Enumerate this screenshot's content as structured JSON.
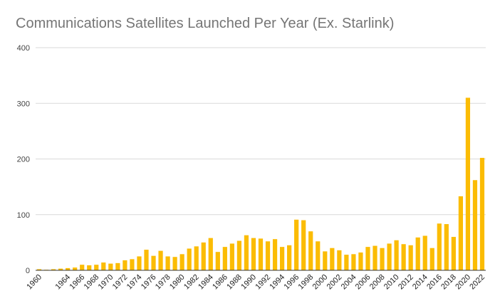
{
  "chart_data": {
    "type": "bar",
    "title": "Communications Satellites Launched Per Year (Ex. Starlink)",
    "xlabel": "",
    "ylabel": "",
    "ylim": [
      0,
      400
    ],
    "yticks": [
      0,
      100,
      200,
      300,
      400
    ],
    "grid": true,
    "legend": "none",
    "bar_color": "#FBBC04",
    "categories": [
      "1960",
      "1961",
      "1962",
      "1963",
      "1964",
      "1965",
      "1966",
      "1967",
      "1968",
      "1969",
      "1970",
      "1971",
      "1972",
      "1973",
      "1974",
      "1975",
      "1976",
      "1977",
      "1978",
      "1979",
      "1980",
      "1981",
      "1982",
      "1983",
      "1984",
      "1985",
      "1986",
      "1987",
      "1988",
      "1989",
      "1990",
      "1991",
      "1992",
      "1993",
      "1994",
      "1995",
      "1996",
      "1997",
      "1998",
      "1999",
      "2000",
      "2001",
      "2002",
      "2003",
      "2004",
      "2005",
      "2006",
      "2007",
      "2008",
      "2009",
      "2010",
      "2011",
      "2012",
      "2013",
      "2014",
      "2015",
      "2016",
      "2017",
      "2018",
      "2019",
      "2020",
      "2021",
      "2022"
    ],
    "tick_labels": [
      "1960",
      "1964",
      "1966",
      "1968",
      "1970",
      "1972",
      "1974",
      "1976",
      "1978",
      "1980",
      "1982",
      "1984",
      "1986",
      "1988",
      "1990",
      "1992",
      "1994",
      "1996",
      "1998",
      "2000",
      "2002",
      "2004",
      "2006",
      "2008",
      "2010",
      "2012",
      "2014",
      "2016",
      "2018",
      "2020",
      "2022"
    ],
    "values": [
      2,
      1,
      2,
      3,
      4,
      5,
      10,
      9,
      10,
      14,
      12,
      13,
      18,
      20,
      25,
      37,
      26,
      35,
      25,
      24,
      29,
      39,
      43,
      50,
      58,
      33,
      42,
      48,
      53,
      63,
      58,
      57,
      52,
      56,
      42,
      45,
      91,
      90,
      70,
      52,
      34,
      40,
      36,
      28,
      29,
      32,
      42,
      44,
      40,
      48,
      54,
      47,
      45,
      59,
      62,
      40,
      84,
      83,
      60,
      133,
      310,
      162,
      202
    ]
  }
}
